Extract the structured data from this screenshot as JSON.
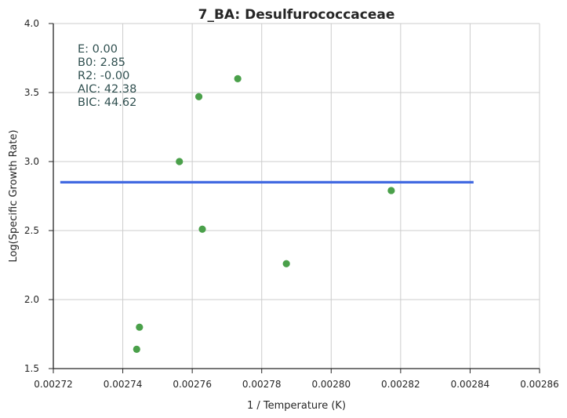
{
  "chart_data": {
    "type": "scatter",
    "title": "7_BA: Desulfurococcaceae",
    "xlabel": "1 / Temperature (K)",
    "ylabel": "Log(Specific Growth Rate)",
    "xlim": [
      0.00272,
      0.00286
    ],
    "ylim": [
      1.5,
      4.0
    ],
    "x_ticks": [
      "0.00272",
      "0.00274",
      "0.00276",
      "0.00278",
      "0.00280",
      "0.00282",
      "0.00284",
      "0.00286"
    ],
    "y_ticks": [
      "1.5",
      "2.0",
      "2.5",
      "3.0",
      "3.5",
      "4.0"
    ],
    "grid": true,
    "points": [
      {
        "x": 0.002744,
        "y": 1.64
      },
      {
        "x": 0.0027448,
        "y": 1.8
      },
      {
        "x": 0.0027563,
        "y": 3.0
      },
      {
        "x": 0.0027619,
        "y": 3.47
      },
      {
        "x": 0.0027629,
        "y": 2.51
      },
      {
        "x": 0.0027731,
        "y": 3.6
      },
      {
        "x": 0.0027871,
        "y": 2.26
      },
      {
        "x": 0.0028173,
        "y": 2.79
      }
    ],
    "fit_line": {
      "x": [
        0.002722,
        0.002841
      ],
      "y": [
        2.85,
        2.85
      ]
    },
    "annotations": [
      "E:  0.00",
      "B0:  2.85",
      "R2:  -0.00",
      "AIC: 42.38",
      "BIC: 44.62"
    ],
    "colors": {
      "points": "#4aa04a",
      "fit_line": "#4169e1",
      "grid": "#cccccc",
      "axis": "#262626",
      "annotation": "#2f4f4f"
    }
  }
}
